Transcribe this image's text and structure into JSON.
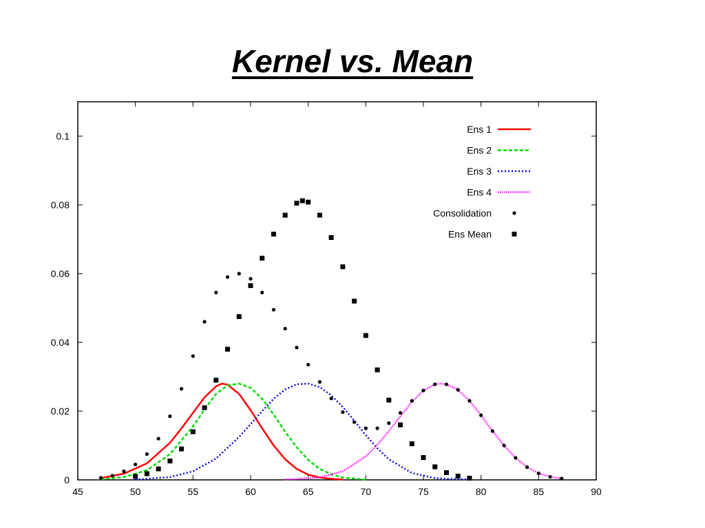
{
  "title": "Kernel vs. Mean",
  "chart_data": {
    "type": "line",
    "title": "Kernel vs. Mean",
    "xlabel": "",
    "ylabel": "",
    "xlim": [
      45,
      90
    ],
    "ylim": [
      0,
      0.11
    ],
    "xticks": [
      45,
      50,
      55,
      60,
      65,
      70,
      75,
      80,
      85,
      90
    ],
    "yticks": [
      0,
      0.02,
      0.04,
      0.06,
      0.08,
      0.1
    ],
    "xtick_labels": [
      "45",
      "50",
      "55",
      "60",
      "65",
      "70",
      "75",
      "80",
      "85",
      "90"
    ],
    "ytick_labels": [
      "0",
      "0.02",
      "0.04",
      "0.06",
      "0.08",
      "0.1"
    ],
    "grid": false,
    "legend": "top-right",
    "series": [
      {
        "name": "Ens 1",
        "color": "#ff0000",
        "style": "solid",
        "marker": "none",
        "x": [
          47,
          49,
          51,
          53,
          54,
          55,
          56,
          57,
          57.5,
          58,
          59,
          60,
          61,
          62,
          63,
          64,
          65,
          66,
          67,
          68
        ],
        "y": [
          0.0005,
          0.0018,
          0.0048,
          0.0108,
          0.015,
          0.0195,
          0.024,
          0.0272,
          0.028,
          0.0277,
          0.025,
          0.0203,
          0.015,
          0.01,
          0.006,
          0.0032,
          0.0015,
          0.0007,
          0.0003,
          0.0001
        ]
      },
      {
        "name": "Ens 2",
        "color": "#00dd00",
        "style": "dashed",
        "marker": "none",
        "x": [
          47,
          49,
          51,
          53,
          55,
          56,
          57,
          58,
          59,
          60,
          61,
          62,
          63,
          64,
          65,
          66,
          67,
          68,
          70
        ],
        "y": [
          0.0002,
          0.0008,
          0.0028,
          0.0075,
          0.0155,
          0.0205,
          0.025,
          0.0275,
          0.028,
          0.0268,
          0.0236,
          0.019,
          0.014,
          0.0095,
          0.0058,
          0.0032,
          0.0016,
          0.0007,
          0.0001
        ]
      },
      {
        "name": "Ens 3",
        "color": "#0000dd",
        "style": "dotted",
        "marker": "none",
        "x": [
          50,
          53,
          55,
          57,
          59,
          60,
          61,
          62,
          63,
          64,
          65,
          66,
          67,
          68,
          69,
          70,
          71,
          72,
          74,
          76,
          79
        ],
        "y": [
          0.0001,
          0.0008,
          0.0025,
          0.0062,
          0.0125,
          0.0162,
          0.02,
          0.0236,
          0.0263,
          0.0278,
          0.028,
          0.027,
          0.0246,
          0.0212,
          0.0172,
          0.013,
          0.0092,
          0.006,
          0.002,
          0.0005,
          0.0001
        ]
      },
      {
        "name": "Ens 4",
        "color": "#ff00ff",
        "style": "dotted-fine",
        "marker": "none",
        "x": [
          63,
          66,
          68,
          70,
          71,
          72,
          73,
          74,
          75,
          76,
          76.5,
          77,
          78,
          79,
          80,
          81,
          82,
          83,
          84,
          85,
          86,
          87
        ],
        "y": [
          0.0001,
          0.0007,
          0.0025,
          0.0068,
          0.0102,
          0.0142,
          0.0185,
          0.0227,
          0.026,
          0.0278,
          0.028,
          0.0278,
          0.0262,
          0.023,
          0.0188,
          0.0142,
          0.01,
          0.0064,
          0.0037,
          0.0019,
          0.0009,
          0.0004
        ]
      },
      {
        "name": "Consolidation",
        "color": "#000000",
        "style": "none",
        "marker": "dot",
        "x": [
          47,
          48,
          49,
          50,
          51,
          52,
          53,
          54,
          55,
          56,
          57,
          58,
          59,
          60,
          61,
          62,
          63,
          64,
          65,
          66,
          67,
          68,
          69,
          70,
          71,
          72,
          73,
          74,
          75,
          76,
          77,
          78,
          79,
          80,
          81,
          82,
          83,
          84,
          85,
          86,
          87
        ],
        "y": [
          0.0006,
          0.0012,
          0.0025,
          0.0045,
          0.0075,
          0.012,
          0.0185,
          0.0265,
          0.036,
          0.046,
          0.0545,
          0.059,
          0.06,
          0.0585,
          0.0545,
          0.0495,
          0.044,
          0.0385,
          0.0335,
          0.0285,
          0.0237,
          0.0197,
          0.0168,
          0.015,
          0.015,
          0.0165,
          0.0195,
          0.023,
          0.026,
          0.0278,
          0.0278,
          0.0262,
          0.023,
          0.0188,
          0.0142,
          0.01,
          0.0064,
          0.0037,
          0.0019,
          0.0009,
          0.0004
        ]
      },
      {
        "name": "Ens Mean",
        "color": "#000000",
        "style": "none",
        "marker": "square",
        "x": [
          50,
          51,
          52,
          53,
          54,
          55,
          56,
          57,
          58,
          59,
          60,
          61,
          62,
          63,
          64,
          64.5,
          65,
          66,
          67,
          68,
          69,
          70,
          71,
          72,
          73,
          74,
          75,
          76,
          77,
          78,
          79
        ],
        "y": [
          0.001,
          0.0018,
          0.0032,
          0.0055,
          0.009,
          0.014,
          0.021,
          0.029,
          0.038,
          0.0475,
          0.0565,
          0.0645,
          0.0715,
          0.077,
          0.0805,
          0.0812,
          0.0808,
          0.077,
          0.0705,
          0.062,
          0.052,
          0.042,
          0.032,
          0.0232,
          0.016,
          0.0105,
          0.0065,
          0.0038,
          0.0021,
          0.0011,
          0.0005
        ]
      }
    ]
  }
}
